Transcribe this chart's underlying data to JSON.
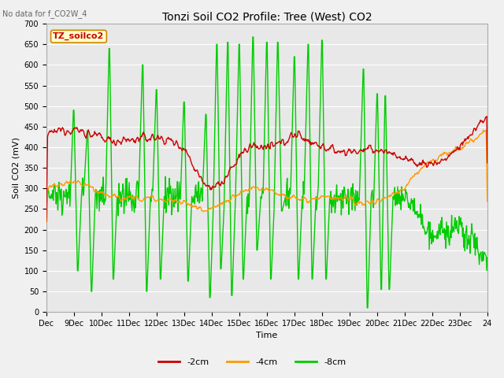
{
  "title": "Tonzi Soil CO2 Profile: Tree (West) CO2",
  "subtitle": "No data for f_CO2W_4",
  "ylabel": "Soil CO2 (mV)",
  "xlabel": "Time",
  "legend_label": "TZ_soilco2",
  "series_labels": [
    "-2cm",
    "-4cm",
    "-8cm"
  ],
  "series_colors": [
    "#cc0000",
    "#ff9900",
    "#00cc00"
  ],
  "ylim": [
    0,
    700
  ],
  "yticks": [
    0,
    50,
    100,
    150,
    200,
    250,
    300,
    350,
    400,
    450,
    500,
    550,
    600,
    650,
    700
  ],
  "xtick_labels": [
    "Dec",
    "9Dec",
    "10Dec",
    "11Dec",
    "12Dec",
    "13Dec",
    "14Dec",
    "15Dec",
    "16Dec",
    "17Dec",
    "18Dec",
    "19Dec",
    "20Dec",
    "21Dec",
    "22Dec",
    "23Dec",
    "24"
  ],
  "fig_bg_color": "#f0f0f0",
  "plot_bg_color": "#e8e8e8",
  "grid_color": "#ffffff",
  "linewidth": 1.0,
  "title_fontsize": 10,
  "label_fontsize": 8,
  "tick_fontsize": 7,
  "legend_fontsize": 8
}
